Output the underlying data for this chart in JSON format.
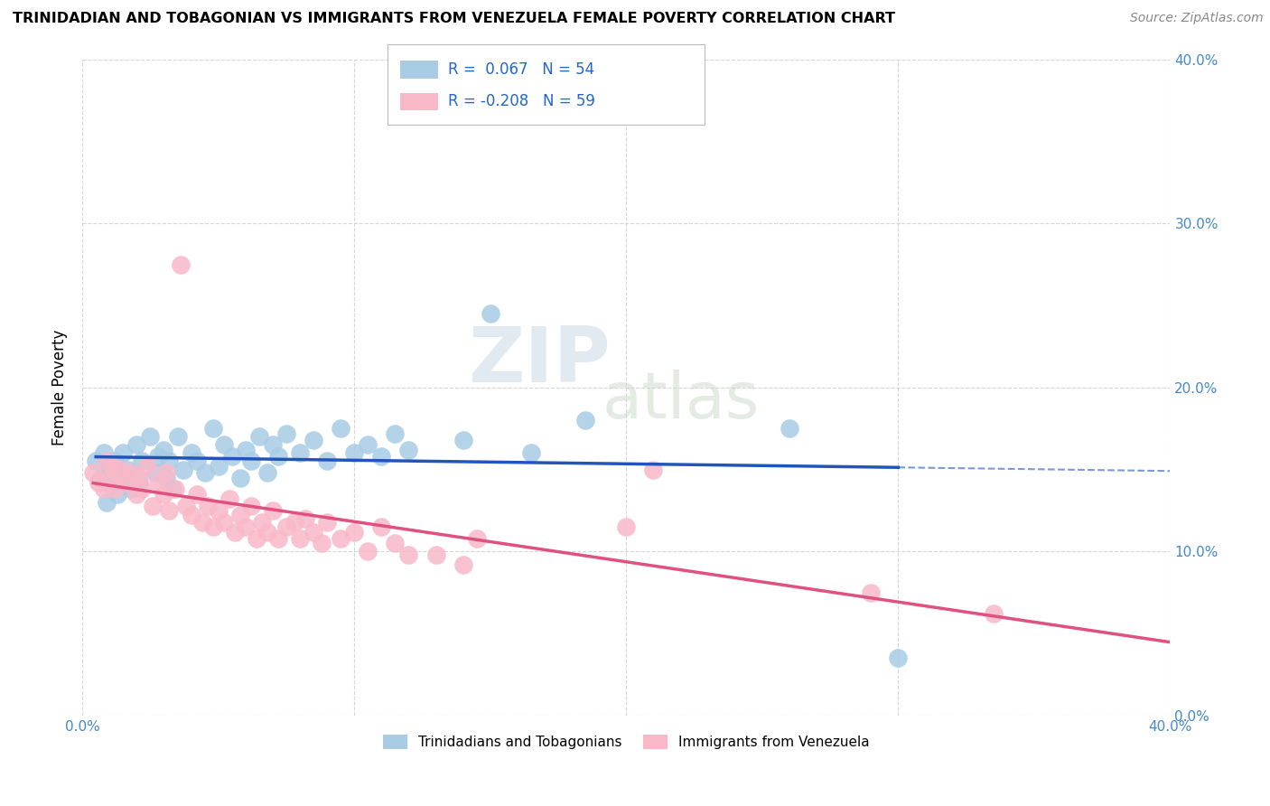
{
  "title": "TRINIDADIAN AND TOBAGONIAN VS IMMIGRANTS FROM VENEZUELA FEMALE POVERTY CORRELATION CHART",
  "source": "Source: ZipAtlas.com",
  "ylabel": "Female Poverty",
  "xlim": [
    0.0,
    0.4
  ],
  "ylim": [
    0.0,
    0.4
  ],
  "xticks": [
    0.0,
    0.1,
    0.2,
    0.3,
    0.4
  ],
  "yticks": [
    0.0,
    0.1,
    0.2,
    0.3,
    0.4
  ],
  "xticklabels": [
    "0.0%",
    "",
    "",
    "",
    "40.0%"
  ],
  "yticklabels": [
    "0.0%",
    "10.0%",
    "20.0%",
    "30.0%",
    "40.0%"
  ],
  "series1_label": "Trinidadians and Tobagonians",
  "series1_R": "0.067",
  "series1_N": "54",
  "series1_color": "#a8cce4",
  "series1_line_color": "#2255bb",
  "series2_label": "Immigrants from Venezuela",
  "series2_R": "-0.208",
  "series2_N": "59",
  "series2_color": "#f9b8c8",
  "series2_line_color": "#e05080",
  "watermark_zip": "ZIP",
  "watermark_atlas": "atlas",
  "grid_color": "#cccccc",
  "background_color": "#ffffff",
  "series1_x": [
    0.005,
    0.007,
    0.008,
    0.009,
    0.01,
    0.011,
    0.012,
    0.013,
    0.015,
    0.016,
    0.017,
    0.018,
    0.02,
    0.021,
    0.022,
    0.025,
    0.027,
    0.028,
    0.03,
    0.031,
    0.032,
    0.033,
    0.035,
    0.037,
    0.04,
    0.042,
    0.045,
    0.048,
    0.05,
    0.052,
    0.055,
    0.058,
    0.06,
    0.062,
    0.065,
    0.068,
    0.07,
    0.072,
    0.075,
    0.08,
    0.085,
    0.09,
    0.095,
    0.1,
    0.105,
    0.11,
    0.115,
    0.12,
    0.14,
    0.15,
    0.165,
    0.185,
    0.26,
    0.3
  ],
  "series1_y": [
    0.155,
    0.145,
    0.16,
    0.13,
    0.15,
    0.14,
    0.155,
    0.135,
    0.16,
    0.145,
    0.15,
    0.138,
    0.165,
    0.142,
    0.155,
    0.17,
    0.148,
    0.158,
    0.162,
    0.145,
    0.155,
    0.138,
    0.17,
    0.15,
    0.16,
    0.155,
    0.148,
    0.175,
    0.152,
    0.165,
    0.158,
    0.145,
    0.162,
    0.155,
    0.17,
    0.148,
    0.165,
    0.158,
    0.172,
    0.16,
    0.168,
    0.155,
    0.175,
    0.16,
    0.165,
    0.158,
    0.172,
    0.162,
    0.168,
    0.245,
    0.16,
    0.18,
    0.175,
    0.035
  ],
  "series2_x": [
    0.004,
    0.006,
    0.008,
    0.009,
    0.01,
    0.011,
    0.012,
    0.014,
    0.016,
    0.018,
    0.02,
    0.021,
    0.022,
    0.024,
    0.026,
    0.028,
    0.03,
    0.031,
    0.032,
    0.034,
    0.036,
    0.038,
    0.04,
    0.042,
    0.044,
    0.046,
    0.048,
    0.05,
    0.052,
    0.054,
    0.056,
    0.058,
    0.06,
    0.062,
    0.064,
    0.066,
    0.068,
    0.07,
    0.072,
    0.075,
    0.078,
    0.08,
    0.082,
    0.085,
    0.088,
    0.09,
    0.095,
    0.1,
    0.105,
    0.11,
    0.115,
    0.12,
    0.13,
    0.14,
    0.145,
    0.2,
    0.21,
    0.29,
    0.335
  ],
  "series2_y": [
    0.148,
    0.142,
    0.138,
    0.155,
    0.145,
    0.152,
    0.138,
    0.15,
    0.142,
    0.148,
    0.135,
    0.145,
    0.138,
    0.152,
    0.128,
    0.142,
    0.135,
    0.148,
    0.125,
    0.138,
    0.275,
    0.128,
    0.122,
    0.135,
    0.118,
    0.128,
    0.115,
    0.125,
    0.118,
    0.132,
    0.112,
    0.122,
    0.115,
    0.128,
    0.108,
    0.118,
    0.112,
    0.125,
    0.108,
    0.115,
    0.118,
    0.108,
    0.12,
    0.112,
    0.105,
    0.118,
    0.108,
    0.112,
    0.1,
    0.115,
    0.105,
    0.098,
    0.098,
    0.092,
    0.108,
    0.115,
    0.15,
    0.075,
    0.062
  ]
}
